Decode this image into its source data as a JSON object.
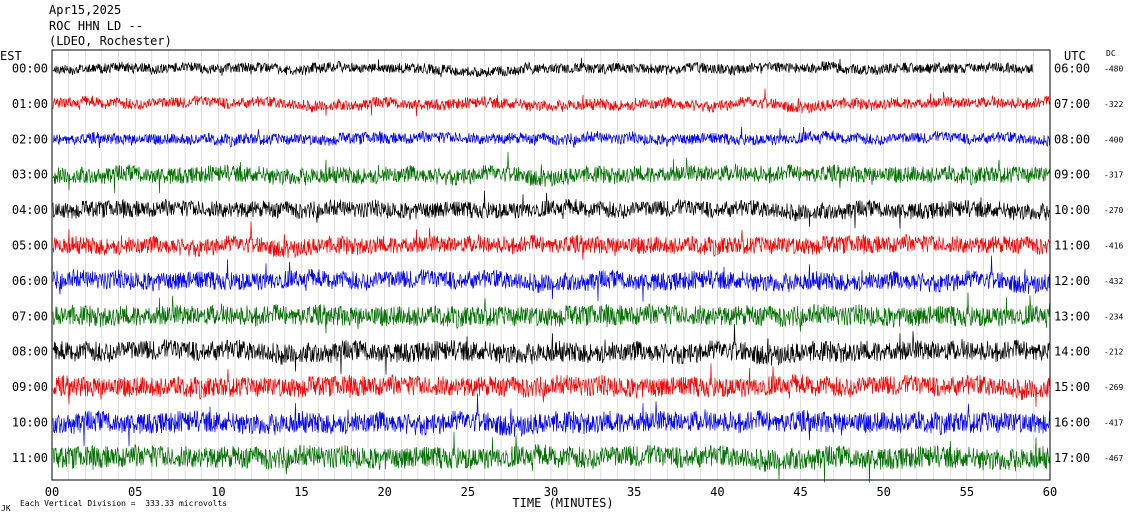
{
  "header": {
    "date": "Apr15,2025",
    "station": "ROC HHN LD --",
    "network": "(LDEO, Rochester)"
  },
  "left_axis_label": "EST",
  "right_axis_label": "UTC",
  "dc_label": "DC",
  "xlabel": "TIME (MINUTES)",
  "footnote_mark": "JK",
  "footnote": "Each Vertical Division =  333.33 microvolts",
  "colors": {
    "black": "#000000",
    "red": "#ff0000",
    "blue": "#0000ff",
    "green": "#007000"
  },
  "chart_data": {
    "type": "line",
    "title": "ROC HHN LD --",
    "xlabel": "TIME (MINUTES)",
    "xlim": [
      0,
      60
    ],
    "x_ticks": [
      "00",
      "05",
      "10",
      "15",
      "20",
      "25",
      "30",
      "35",
      "40",
      "45",
      "50",
      "55",
      "60"
    ],
    "grid": true,
    "series": [
      {
        "est": "00:00",
        "utc": "06:00",
        "dc": "-480",
        "color": "#000000",
        "amplitude": 0.55,
        "end_minute": 59
      },
      {
        "est": "01:00",
        "utc": "07:00",
        "dc": "-322",
        "color": "#ff0000",
        "amplitude": 0.6,
        "end_minute": 60
      },
      {
        "est": "02:00",
        "utc": "08:00",
        "dc": "-400",
        "color": "#0000ff",
        "amplitude": 0.6,
        "end_minute": 60
      },
      {
        "est": "03:00",
        "utc": "09:00",
        "dc": "-317",
        "color": "#007000",
        "amplitude": 0.9,
        "end_minute": 60
      },
      {
        "est": "04:00",
        "utc": "10:00",
        "dc": "-270",
        "color": "#000000",
        "amplitude": 0.9,
        "end_minute": 60
      },
      {
        "est": "05:00",
        "utc": "11:00",
        "dc": "-416",
        "color": "#ff0000",
        "amplitude": 0.95,
        "end_minute": 60
      },
      {
        "est": "06:00",
        "utc": "12:00",
        "dc": "-432",
        "color": "#0000ff",
        "amplitude": 1.0,
        "end_minute": 60
      },
      {
        "est": "07:00",
        "utc": "13:00",
        "dc": "-234",
        "color": "#007000",
        "amplitude": 1.1,
        "end_minute": 60
      },
      {
        "est": "08:00",
        "utc": "14:00",
        "dc": "-212",
        "color": "#000000",
        "amplitude": 1.1,
        "end_minute": 60
      },
      {
        "est": "09:00",
        "utc": "15:00",
        "dc": "-269",
        "color": "#ff0000",
        "amplitude": 1.1,
        "end_minute": 60
      },
      {
        "est": "10:00",
        "utc": "16:00",
        "dc": "-417",
        "color": "#0000ff",
        "amplitude": 1.15,
        "end_minute": 60
      },
      {
        "est": "11:00",
        "utc": "17:00",
        "dc": "-467",
        "color": "#007000",
        "amplitude": 1.2,
        "end_minute": 60
      }
    ]
  }
}
